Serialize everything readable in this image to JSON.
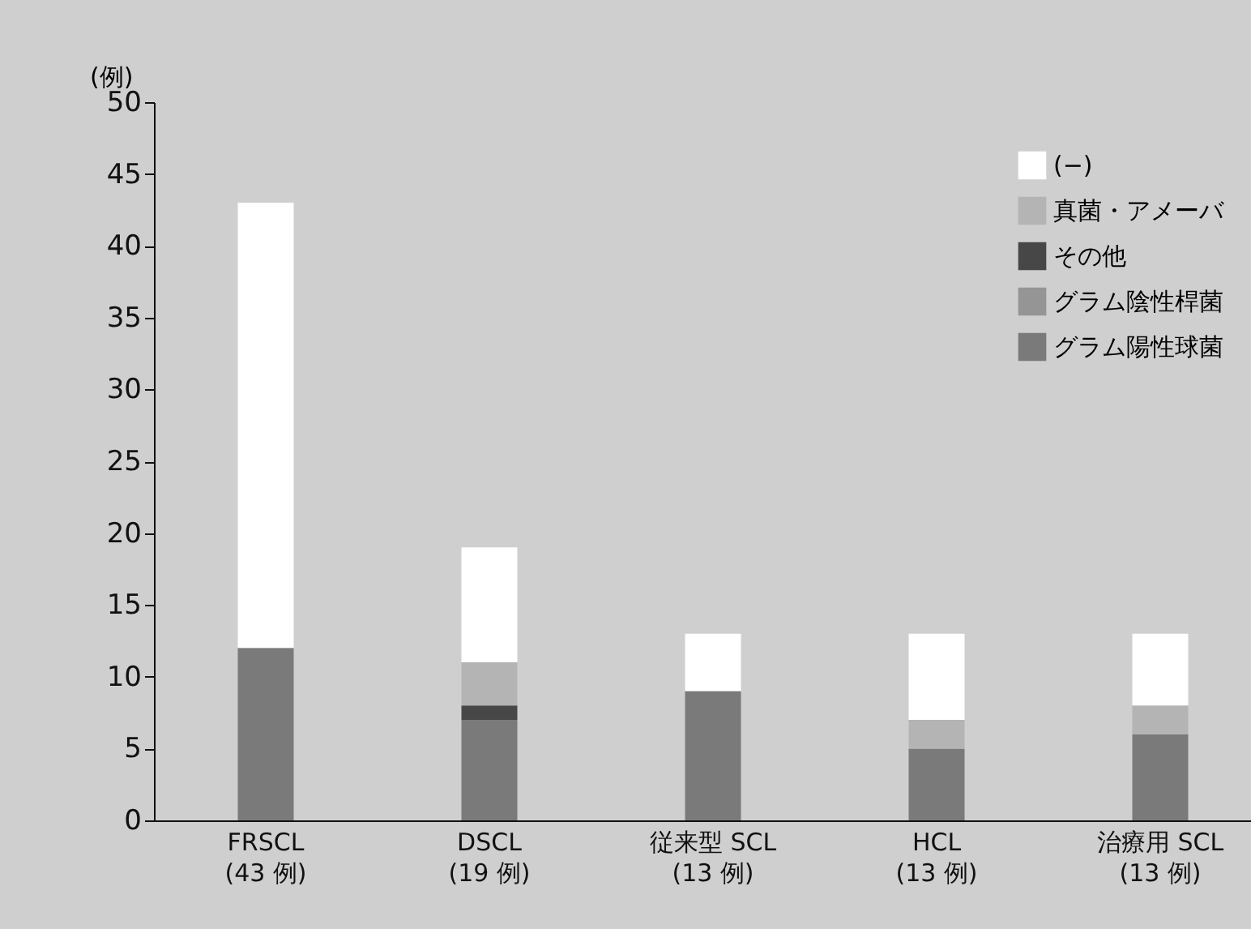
{
  "chart_data": {
    "type": "bar",
    "stacked": true,
    "ylabel": "(例)",
    "categories": [
      "FRSCL\n(43 例)",
      "DSCL\n(19 例)",
      "従来型 SCL\n(13 例)",
      "HCL\n(13 例)",
      "治療用 SCL\n(13 例)"
    ],
    "series": [
      {
        "name": "グラム陽性球菌",
        "color": "#7a7a7a",
        "values": [
          12,
          7,
          9,
          5,
          6
        ]
      },
      {
        "name": "グラム陰性桿菌",
        "color": "#959595",
        "values": [
          0,
          0,
          0,
          0,
          0
        ]
      },
      {
        "name": "その他",
        "color": "#474747",
        "values": [
          0,
          1,
          0,
          0,
          0
        ]
      },
      {
        "name": "真菌・アメーバ",
        "color": "#b4b4b4",
        "values": [
          0,
          3,
          0,
          2,
          2
        ]
      },
      {
        "name": "(−)",
        "color": "#ffffff",
        "values": [
          31,
          8,
          4,
          6,
          5
        ]
      }
    ],
    "ylim": [
      0,
      50
    ],
    "yticks": [
      0,
      5,
      10,
      15,
      20,
      25,
      30,
      35,
      40,
      45,
      50
    ],
    "grid": false,
    "legend": "top right"
  }
}
